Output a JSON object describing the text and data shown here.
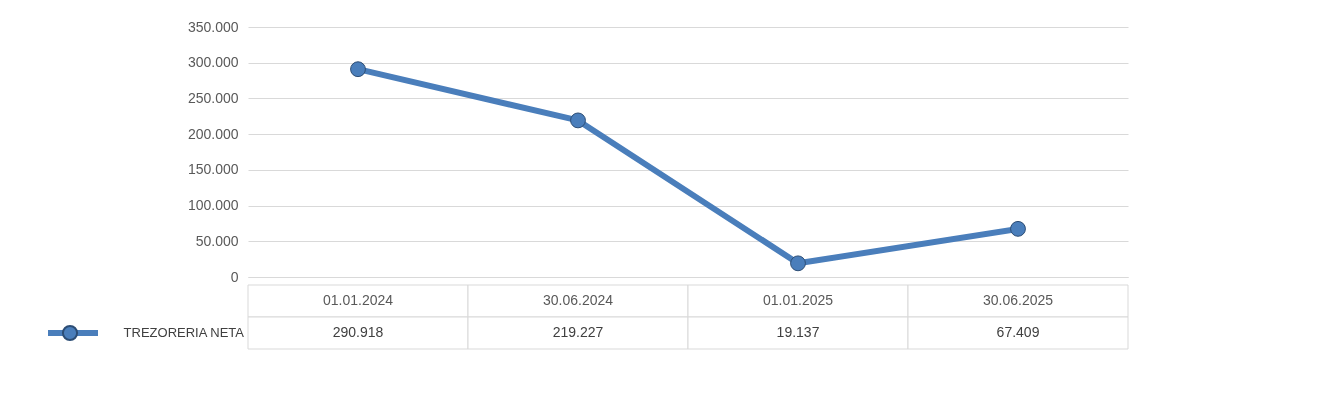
{
  "chart_data": {
    "type": "line",
    "categories": [
      "01.01.2024",
      "30.06.2024",
      "01.01.2025",
      "30.06.2025"
    ],
    "series": [
      {
        "name": "TREZORERIA NETA",
        "color": "#4a7ebb",
        "values": [
          290918,
          219227,
          19137,
          67409
        ],
        "value_labels": [
          "290.918",
          "219.227",
          "19.137",
          "67.409"
        ]
      }
    ],
    "ylim": [
      0,
      350000
    ],
    "yticks": [
      {
        "value": 0,
        "label": "0"
      },
      {
        "value": 50000,
        "label": "50.000"
      },
      {
        "value": 100000,
        "label": "100.000"
      },
      {
        "value": 150000,
        "label": "150.000"
      },
      {
        "value": 200000,
        "label": "200.000"
      },
      {
        "value": 250000,
        "label": "250.000"
      },
      {
        "value": 300000,
        "label": "300.000"
      },
      {
        "value": 350000,
        "label": "350.000"
      }
    ],
    "grid": "y",
    "marker": "circle",
    "line_style": "solid",
    "legend": "bottom left"
  }
}
